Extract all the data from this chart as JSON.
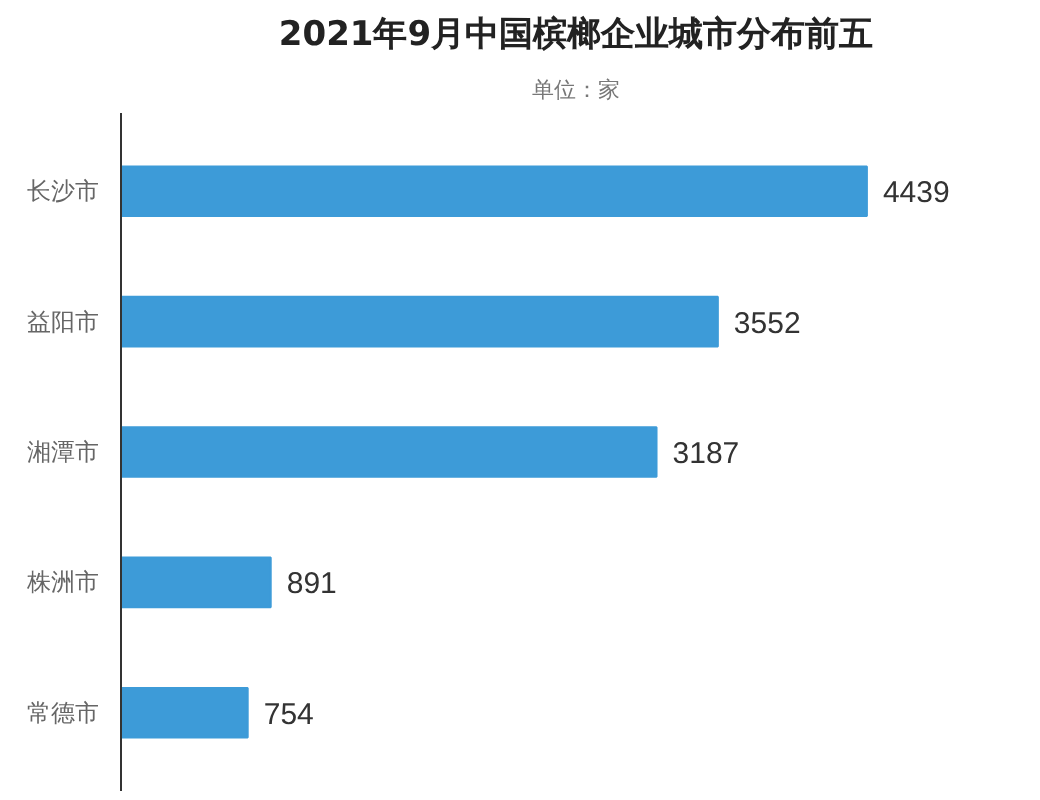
{
  "chart_data": {
    "type": "bar",
    "orientation": "horizontal",
    "title": "2021年9月中国槟榔企业城市分布前五",
    "subtitle": "单位：家",
    "categories": [
      "长沙市",
      "益阳市",
      "湘潭市",
      "株洲市",
      "常德市"
    ],
    "values": [
      4439,
      3552,
      3187,
      891,
      754
    ],
    "color": "#3d9bd8",
    "tick_labels": "y",
    "data_labels": true,
    "grid": false
  }
}
